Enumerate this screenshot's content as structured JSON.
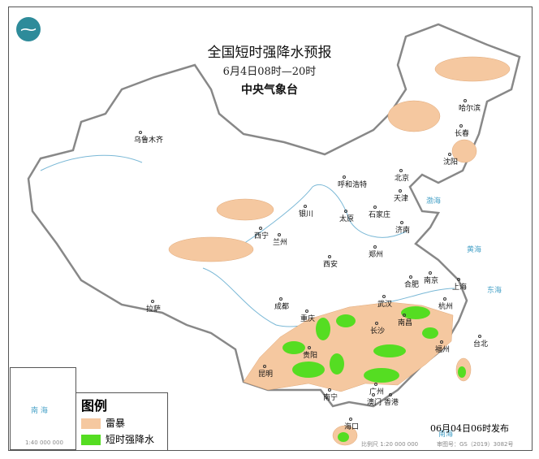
{
  "header": {
    "title": "全国短时强降水预报",
    "time_range": "6月4日08时—20时",
    "issuer": "中央气象台",
    "logo": "cma-logo-icon"
  },
  "cities": [
    "乌鲁木齐",
    "哈尔滨",
    "长春",
    "沈阳",
    "呼和浩特",
    "北京",
    "天津",
    "石家庄",
    "太原",
    "济南",
    "银川",
    "西宁",
    "兰州",
    "郑州",
    "西安",
    "合肥",
    "南京",
    "上海",
    "成都",
    "拉萨",
    "武汉",
    "杭州",
    "重庆",
    "长沙",
    "南昌",
    "贵阳",
    "福州",
    "台北",
    "昆明",
    "南宁",
    "广州",
    "香港",
    "澳门",
    "海口"
  ],
  "seas": [
    "渤海",
    "黄海",
    "东海",
    "南海"
  ],
  "legend": {
    "title": "图例",
    "items": [
      {
        "label": "雷暴",
        "color": "#f5c8a0"
      },
      {
        "label": "短时强降水",
        "color": "#55dd22"
      }
    ]
  },
  "footer": {
    "issued": "06月04日06时发布",
    "scale": "比例尺 1:20 000 000",
    "map_no": "审图号：GS（2019）3082号",
    "inset_scale": "1:40 000 000",
    "inset_sea": "南 海"
  }
}
